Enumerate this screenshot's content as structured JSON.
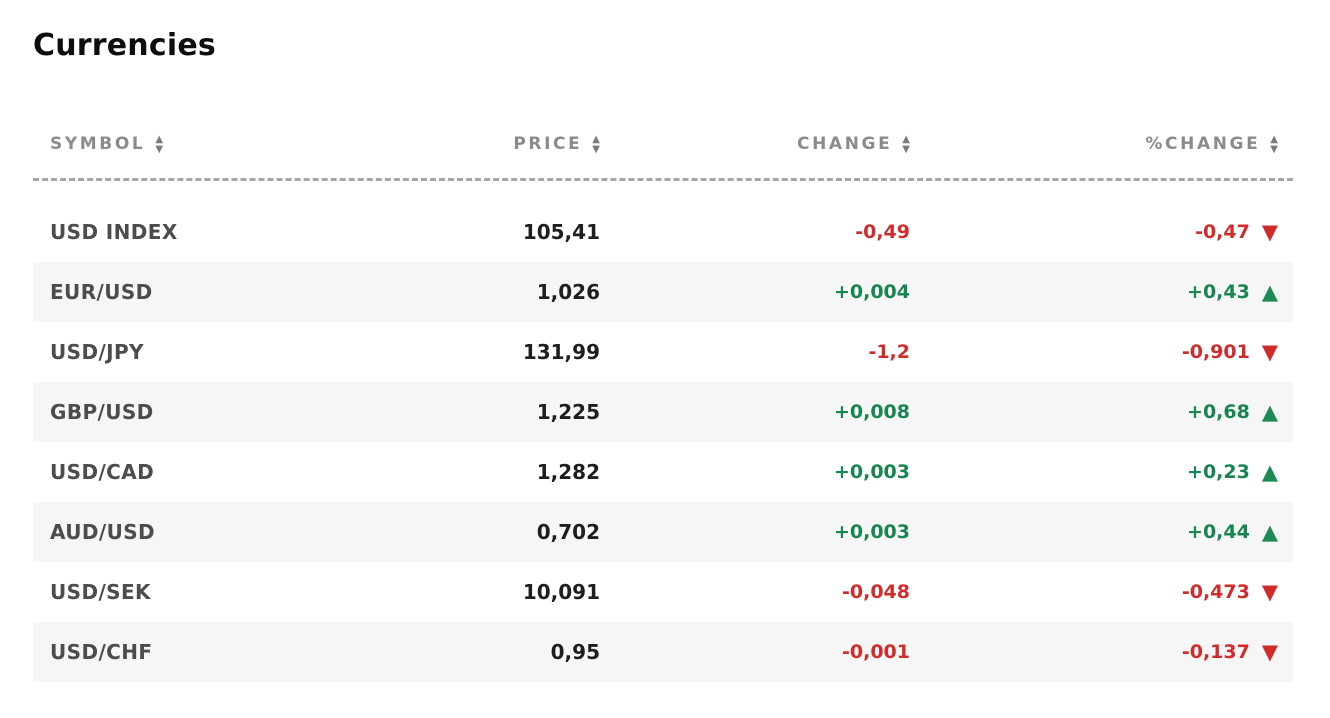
{
  "title": "Currencies",
  "icons": {
    "sort_up": "▲",
    "sort_down": "▼",
    "up": "▲",
    "down": "▼"
  },
  "colors": {
    "positive": "#17854f",
    "negative": "#d02c2c",
    "stripe": "#f6f6f6",
    "header_text": "#8b8b8b"
  },
  "table": {
    "columns": [
      {
        "key": "symbol",
        "label": "SYMBOL",
        "sortable": true
      },
      {
        "key": "price",
        "label": "PRICE",
        "sortable": true
      },
      {
        "key": "change",
        "label": "CHANGE",
        "sortable": true
      },
      {
        "key": "pct_change",
        "label": "%CHANGE",
        "sortable": true
      }
    ],
    "rows": [
      {
        "symbol": "USD INDEX",
        "price": "105,41",
        "change": "-0,49",
        "pct_change": "-0,47",
        "direction": "down"
      },
      {
        "symbol": "EUR/USD",
        "price": "1,026",
        "change": "+0,004",
        "pct_change": "+0,43",
        "direction": "up"
      },
      {
        "symbol": "USD/JPY",
        "price": "131,99",
        "change": "-1,2",
        "pct_change": "-0,901",
        "direction": "down"
      },
      {
        "symbol": "GBP/USD",
        "price": "1,225",
        "change": "+0,008",
        "pct_change": "+0,68",
        "direction": "up"
      },
      {
        "symbol": "USD/CAD",
        "price": "1,282",
        "change": "+0,003",
        "pct_change": "+0,23",
        "direction": "up"
      },
      {
        "symbol": "AUD/USD",
        "price": "0,702",
        "change": "+0,003",
        "pct_change": "+0,44",
        "direction": "up"
      },
      {
        "symbol": "USD/SEK",
        "price": "10,091",
        "change": "-0,048",
        "pct_change": "-0,473",
        "direction": "down"
      },
      {
        "symbol": "USD/CHF",
        "price": "0,95",
        "change": "-0,001",
        "pct_change": "-0,137",
        "direction": "down"
      }
    ]
  }
}
